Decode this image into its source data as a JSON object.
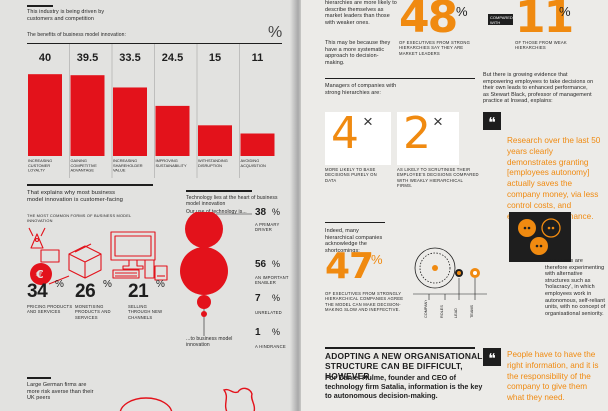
{
  "left": {
    "intro": "This industry is being driven by customers and competition",
    "chart_sub": "The benefits of business model innovation:",
    "percent_sign": "%",
    "chart_data": {
      "type": "bar",
      "categories": [
        "Increasing customer loyalty",
        "Gaining competitive advantage",
        "Increasing shareholder value",
        "Improving sustainability",
        "Withstanding disruption",
        "Avoiding acquisition"
      ],
      "values": [
        40,
        39.5,
        33.5,
        24.5,
        15,
        11
      ],
      "labels": [
        "40",
        "39.5",
        "33.5",
        "24.5",
        "15",
        "11"
      ],
      "ylim": [
        0,
        44
      ]
    },
    "section2_title": "That explains why most business model innovation is customer-facing",
    "section2_sub": "The most common forms of business model innovation",
    "stats": [
      {
        "value": "34",
        "unit": "%",
        "label": "Pricing products and services"
      },
      {
        "value": "26",
        "unit": "%",
        "label": "Monetising products and services"
      },
      {
        "value": "21",
        "unit": "%",
        "label": "Selling through new channels"
      }
    ],
    "tech_title": "Technology lies at the heart of business model innovation",
    "tech_sub": "Our use of technology is...",
    "tech_items": [
      {
        "value": "38",
        "unit": "%",
        "label": "A primary driver"
      },
      {
        "value": "56",
        "unit": "%",
        "label": "An important enabler"
      },
      {
        "value": "7",
        "unit": "%",
        "label": "Unrelated"
      },
      {
        "value": "1",
        "unit": "%",
        "label": "A hindrance"
      }
    ],
    "tech_footer": "...to business model innovation",
    "bottom_text": "Large German firms are more risk averse than their UK peers"
  },
  "right": {
    "top_text": "hierarchies are more likely to describe themselves as market leaders than those with weaker ones.",
    "stat48": "48",
    "stat48_unit": "%",
    "stat48_caption": "of executives from strong hierarchies say they are market leaders",
    "stat11": "11",
    "stat11_unit": "%",
    "compared_label": "Compared with",
    "stat11_caption": "of those from weak hierarchies",
    "para1": "This may be because they have a more systematic approach to decision-making.",
    "para2": "But there is growing evidence that empowering employees to take decisions on their own leads to enhanced performance, as Stewart Black, professor of management practice at Insead, explains:",
    "managers_text": "Managers of companies with strong hierarchies are:",
    "mult4": "4",
    "mult2": "2",
    "times": "×",
    "mult4_caption": "More likely to base decisions purely on data",
    "mult2_caption": "As likely to scrutinise their employee's decisions compared with weakly hierarchical firms.",
    "quote_mark": "❝",
    "quote1": "Research over the last 50 years clearly demonstrates granting [employees autonomy] actually saves the company money, via less control costs, and enhanced performance.",
    "para3": "Indeed, many hierarchical companies acknowledge the shortcomings:",
    "stat47": "47",
    "stat47_unit": "%",
    "stat47_caption": "of executives from strongly hierarchical companies agree the model can make decision-making slow and ineffective.",
    "axis_labels": [
      "Company",
      "Roles",
      "Lead",
      "Teams"
    ],
    "para4": "Some firms are therefore experimenting with alternative structures such as 'holacracy', in which employees work in autonomous, self-reliant units, with no concept of organisational seniority.",
    "headline": "Adopting a new organisational structure can be difficult, however.",
    "headline_sub": "For Daniel Hulme, founder and CEO of technology firm Satalia, information is the key to autonomous decision-making.",
    "quote2": "People have to have the right information, and it is the responsibility of the company to give them what they need."
  }
}
